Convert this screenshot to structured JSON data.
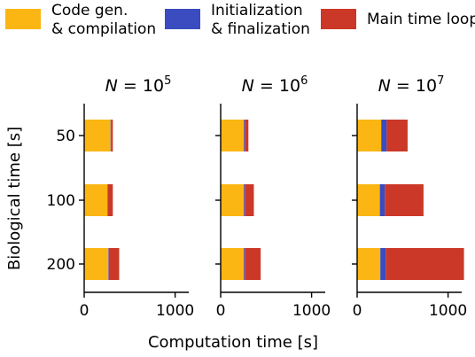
{
  "legend": [
    {
      "line1": "Code gen.",
      "line2": "& compilation",
      "color": "#fbb614"
    },
    {
      "line1": "Initialization",
      "line2": "& finalization",
      "color": "#3a4cc0"
    },
    {
      "line1": "Main time loop",
      "line2": "",
      "color": "#cc3827"
    }
  ],
  "chart_data": {
    "type": "bar",
    "orientation": "horizontal",
    "stacked": true,
    "categories": [
      "50",
      "100",
      "200"
    ],
    "ylabel": "Biological time [s]",
    "xlabel": "Computation time [s]",
    "xlim": [
      0,
      1150
    ],
    "xticks": [
      0,
      1000
    ],
    "series_names": [
      "Code gen. & compilation",
      "Initialization & finalization",
      "Main time loop"
    ],
    "colors": [
      "#fbb614",
      "#3a4cc0",
      "#cc3827"
    ],
    "panels": [
      {
        "title_var": "N",
        "title_eq": " = 10",
        "title_exp": "5",
        "series": [
          {
            "name": "Code gen. & compilation",
            "values": [
              290,
              255,
              265
            ]
          },
          {
            "name": "Initialization & finalization",
            "values": [
              5,
              5,
              5
            ]
          },
          {
            "name": "Main time loop",
            "values": [
              20,
              55,
              115
            ]
          }
        ]
      },
      {
        "title_var": "N",
        "title_eq": " = 10",
        "title_exp": "6",
        "series": [
          {
            "name": "Code gen. & compilation",
            "values": [
              255,
              255,
              255
            ]
          },
          {
            "name": "Initialization & finalization",
            "values": [
              10,
              10,
              10
            ]
          },
          {
            "name": "Main time loop",
            "values": [
              40,
              100,
              175
            ]
          }
        ]
      },
      {
        "title_var": "N",
        "title_eq": " = 10",
        "title_exp": "7",
        "series": [
          {
            "name": "Code gen. & compilation",
            "values": [
              265,
              250,
              255
            ]
          },
          {
            "name": "Initialization & finalization",
            "values": [
              60,
              55,
              60
            ]
          },
          {
            "name": "Main time loop",
            "values": [
              230,
              425,
              860
            ]
          }
        ]
      }
    ]
  }
}
